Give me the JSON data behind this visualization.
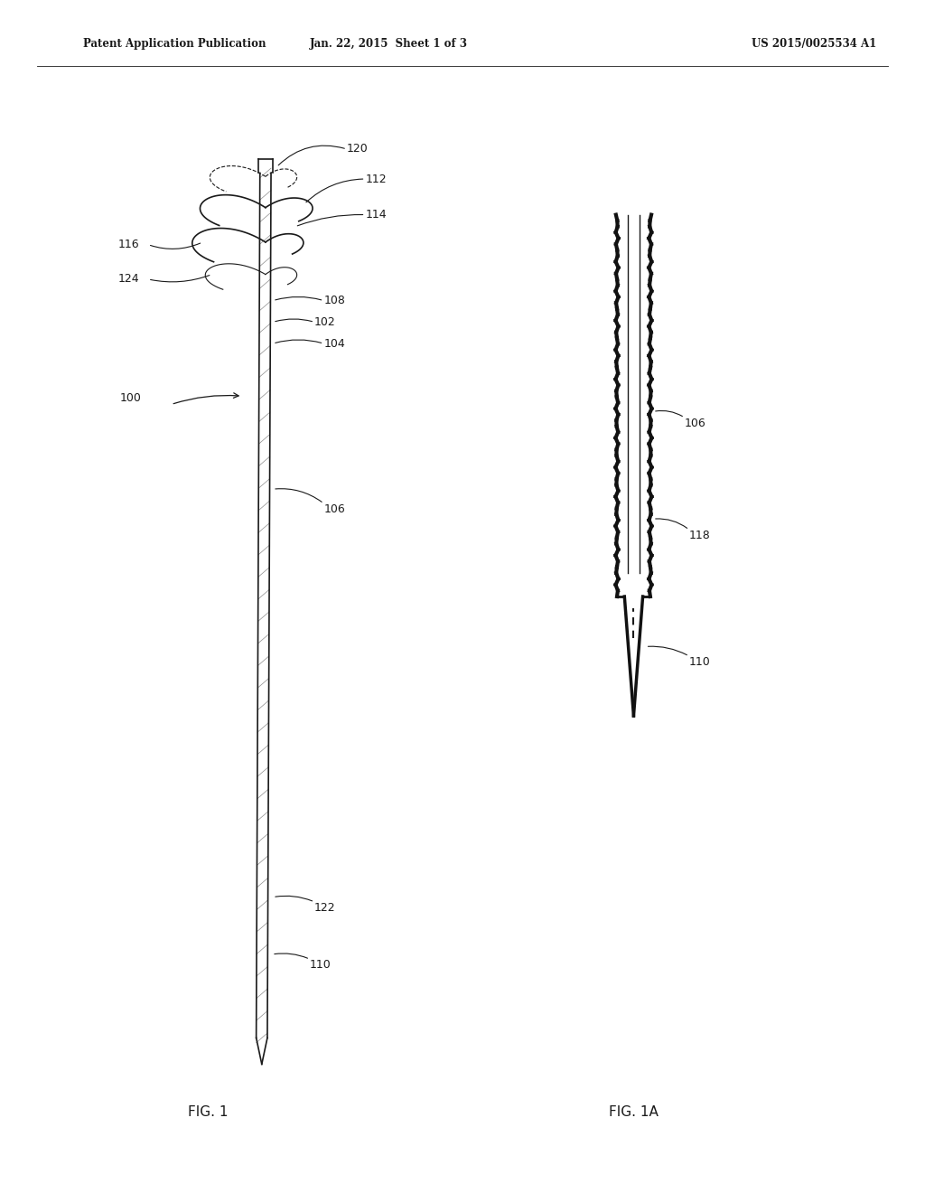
{
  "header_left": "Patent Application Publication",
  "header_mid": "Jan. 22, 2015  Sheet 1 of 3",
  "header_right": "US 2015/0025534 A1",
  "fig1_label": "FIG. 1",
  "fig1a_label": "FIG. 1A",
  "background": "#ffffff",
  "line_color": "#1a1a1a"
}
